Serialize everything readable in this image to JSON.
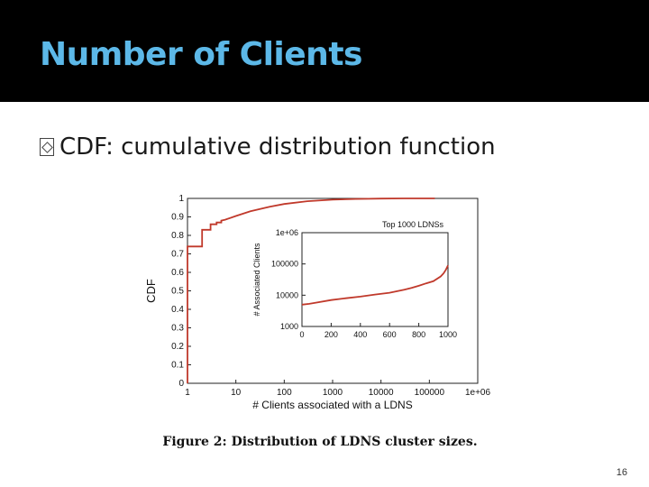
{
  "slide": {
    "title": "Number of Clients",
    "bullet": "CDF: cumulative distribution function",
    "page_number": "16"
  },
  "figure": {
    "caption": "Figure 2: Distribution of LDNS cluster sizes."
  },
  "colors": {
    "title_bar": "#000000",
    "title_text": "#5cb8e8",
    "line": "#c0392b"
  },
  "chart_data": [
    {
      "type": "line",
      "xlabel": "# Clients associated with a LDNS",
      "ylabel": "CDF",
      "xscale": "log",
      "xlim": [
        1,
        1000000
      ],
      "ylim": [
        0,
        1
      ],
      "xticks": [
        "1",
        "10",
        "100",
        "1000",
        "10000",
        "100000",
        "1e+06"
      ],
      "xtick_values": [
        1,
        10,
        100,
        1000,
        10000,
        100000,
        1000000
      ],
      "yticks": [
        "0",
        "0.1",
        "0.2",
        "0.3",
        "0.4",
        "0.5",
        "0.6",
        "0.7",
        "0.8",
        "0.9",
        "1"
      ],
      "ytick_values": [
        0,
        0.1,
        0.2,
        0.3,
        0.4,
        0.5,
        0.6,
        0.7,
        0.8,
        0.9,
        1.0
      ],
      "grid": false,
      "series": [
        {
          "x": [
            1,
            1,
            2,
            2,
            3,
            3,
            4,
            4,
            5,
            5,
            6,
            10,
            20,
            50,
            100,
            300,
            1000,
            3000,
            10000,
            30000,
            100000,
            130000
          ],
          "y": [
            0,
            0.74,
            0.74,
            0.83,
            0.83,
            0.86,
            0.86,
            0.87,
            0.87,
            0.88,
            0.885,
            0.905,
            0.93,
            0.955,
            0.97,
            0.985,
            0.993,
            0.997,
            0.999,
            1.0,
            1.0,
            1.0
          ]
        }
      ]
    },
    {
      "type": "line",
      "title": "Top 1000 LDNSs",
      "xlabel": "",
      "ylabel": "# Associated Clients",
      "yscale": "log",
      "xlim": [
        0,
        1000
      ],
      "ylim": [
        1000,
        1000000
      ],
      "xticks": [
        "0",
        "200",
        "400",
        "600",
        "800",
        "1000"
      ],
      "xtick_values": [
        0,
        200,
        400,
        600,
        800,
        1000
      ],
      "yticks": [
        "1000",
        "10000",
        "100000",
        "1e+06"
      ],
      "ytick_values": [
        1000,
        10000,
        100000,
        1000000
      ],
      "grid": false,
      "series": [
        {
          "x": [
            0,
            50,
            100,
            200,
            300,
            400,
            500,
            600,
            700,
            750,
            800,
            850,
            900,
            950,
            970,
            985,
            1000
          ],
          "y": [
            5000,
            5300,
            5800,
            7000,
            8000,
            9000,
            10500,
            12000,
            15000,
            17000,
            20000,
            24000,
            28000,
            40000,
            50000,
            65000,
            90000
          ]
        }
      ]
    }
  ]
}
